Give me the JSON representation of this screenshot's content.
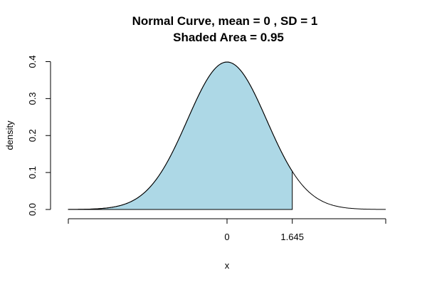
{
  "chart_data": {
    "type": "area",
    "title_line1": "Normal Curve, mean =  0 , SD =  1",
    "title_line2": "Shaded Area =  0.95",
    "xlabel": "x",
    "ylabel": "density",
    "distribution": "normal",
    "mean": 0,
    "sd": 1,
    "shaded_area": 0.95,
    "shade_from": -4,
    "shade_to": 1.645,
    "xlim": [
      -4,
      4
    ],
    "ylim": [
      0,
      0.4
    ],
    "x_tick_values": [
      -4,
      0,
      1.645,
      4
    ],
    "x_tick_labels": [
      "",
      "0",
      "1.645",
      ""
    ],
    "y_ticks": [
      "0.0",
      "0.1",
      "0.2",
      "0.3",
      "0.4"
    ],
    "grid": false,
    "colors": {
      "shade": "#add8e6",
      "curve": "#000000",
      "axis": "#000000",
      "background": "#ffffff"
    }
  }
}
